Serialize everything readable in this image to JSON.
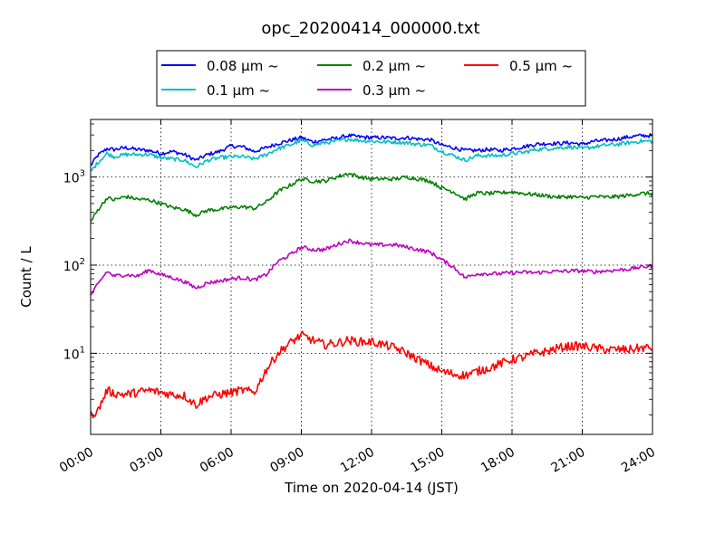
{
  "chart_data": {
    "type": "line",
    "title": "opc_20200414_000000.txt",
    "xlabel": "Time on 2020-04-14 (JST)",
    "ylabel": "Count / L",
    "x_unit": "hours",
    "xlim": [
      0,
      24
    ],
    "ylim": [
      1.2,
      4500
    ],
    "yscale": "log",
    "grid": true,
    "legend_position": "top",
    "x_ticks": [
      {
        "value": 0,
        "label": "00:00"
      },
      {
        "value": 3,
        "label": "03:00"
      },
      {
        "value": 6,
        "label": "06:00"
      },
      {
        "value": 9,
        "label": "09:00"
      },
      {
        "value": 12,
        "label": "12:00"
      },
      {
        "value": 15,
        "label": "15:00"
      },
      {
        "value": 18,
        "label": "18:00"
      },
      {
        "value": 21,
        "label": "21:00"
      },
      {
        "value": 24,
        "label": "24:00"
      }
    ],
    "y_ticks": [
      {
        "value": 10,
        "base": "10",
        "exp": "1"
      },
      {
        "value": 100,
        "base": "10",
        "exp": "2"
      },
      {
        "value": 1000,
        "base": "10",
        "exp": "3"
      }
    ],
    "series": [
      {
        "name": "0.08 μm ~",
        "color": "#0000ff",
        "x": [
          0,
          0.3,
          0.7,
          1,
          1.5,
          2,
          2.5,
          3,
          3.5,
          4,
          4.5,
          5,
          5.5,
          6,
          6.5,
          7,
          7.5,
          8,
          8.5,
          9,
          9.5,
          10,
          10.5,
          11,
          11.5,
          12,
          12.5,
          13,
          13.5,
          14,
          14.5,
          15,
          15.5,
          16,
          16.5,
          17,
          17.5,
          18,
          18.5,
          19,
          19.5,
          20,
          20.5,
          21,
          21.5,
          22,
          22.5,
          23,
          23.5,
          24
        ],
        "y": [
          1350,
          1750,
          2100,
          2050,
          2150,
          2050,
          2000,
          1850,
          1950,
          1800,
          1550,
          1800,
          1950,
          2250,
          2200,
          1950,
          2150,
          2400,
          2600,
          2800,
          2500,
          2650,
          2750,
          2950,
          2850,
          2800,
          2800,
          2750,
          2800,
          2700,
          2650,
          2300,
          2150,
          2000,
          2000,
          2050,
          2000,
          2100,
          2200,
          2350,
          2400,
          2400,
          2450,
          2350,
          2550,
          2600,
          2700,
          2850,
          2950,
          2950
        ]
      },
      {
        "name": "0.1 μm ~",
        "color": "#00bfbf",
        "x": [
          0,
          0.3,
          0.7,
          1,
          1.5,
          2,
          2.5,
          3,
          3.5,
          4,
          4.5,
          5,
          5.5,
          6,
          6.5,
          7,
          7.5,
          8,
          8.5,
          9,
          9.5,
          10,
          10.5,
          11,
          11.5,
          12,
          12.5,
          13,
          13.5,
          14,
          14.5,
          15,
          15.5,
          16,
          16.5,
          17,
          17.5,
          18,
          18.5,
          19,
          19.5,
          20,
          20.5,
          21,
          21.5,
          22,
          22.5,
          23,
          23.5,
          24
        ],
        "y": [
          1150,
          1450,
          1850,
          1700,
          1800,
          1800,
          1800,
          1650,
          1600,
          1550,
          1300,
          1550,
          1650,
          1700,
          1700,
          1600,
          1800,
          2100,
          2300,
          2600,
          2300,
          2450,
          2550,
          2700,
          2600,
          2550,
          2500,
          2500,
          2450,
          2350,
          2300,
          1950,
          1750,
          1550,
          1750,
          1750,
          1750,
          1850,
          1900,
          2050,
          2100,
          2150,
          2200,
          2100,
          2200,
          2300,
          2350,
          2450,
          2550,
          2550
        ]
      },
      {
        "name": "0.2 μm ~",
        "color": "#008000",
        "x": [
          0,
          0.3,
          0.7,
          1,
          1.5,
          2,
          2.5,
          3,
          3.5,
          4,
          4.5,
          5,
          5.5,
          6,
          6.5,
          7,
          7.5,
          8,
          8.5,
          9,
          9.5,
          10,
          10.5,
          11,
          11.5,
          12,
          12.5,
          13,
          13.5,
          14,
          14.5,
          15,
          15.5,
          16,
          16.5,
          17,
          17.5,
          18,
          18.5,
          19,
          19.5,
          20,
          20.5,
          21,
          21.5,
          22,
          22.5,
          23,
          23.5,
          24
        ],
        "y": [
          310,
          420,
          580,
          550,
          600,
          560,
          550,
          500,
          450,
          430,
          370,
          420,
          430,
          450,
          460,
          440,
          520,
          680,
          800,
          950,
          900,
          900,
          1000,
          1100,
          1000,
          950,
          950,
          950,
          1000,
          950,
          900,
          750,
          680,
          560,
          660,
          650,
          660,
          680,
          650,
          630,
          610,
          590,
          600,
          580,
          600,
          590,
          600,
          620,
          650,
          650
        ]
      },
      {
        "name": "0.3 μm ~",
        "color": "#bf00bf",
        "x": [
          0,
          0.3,
          0.7,
          1,
          1.5,
          2,
          2.5,
          3,
          3.5,
          4,
          4.5,
          5,
          5.5,
          6,
          6.5,
          7,
          7.5,
          8,
          8.5,
          9,
          9.5,
          10,
          10.5,
          11,
          11.5,
          12,
          12.5,
          13,
          13.5,
          14,
          14.5,
          15,
          15.5,
          16,
          16.5,
          17,
          17.5,
          18,
          18.5,
          19,
          19.5,
          20,
          20.5,
          21,
          21.5,
          22,
          22.5,
          23,
          23.5,
          24
        ],
        "y": [
          45,
          60,
          85,
          75,
          78,
          75,
          88,
          78,
          72,
          65,
          55,
          63,
          66,
          70,
          72,
          68,
          78,
          110,
          130,
          160,
          150,
          150,
          170,
          190,
          180,
          170,
          170,
          170,
          160,
          150,
          140,
          115,
          95,
          72,
          80,
          80,
          80,
          82,
          83,
          82,
          84,
          85,
          86,
          86,
          84,
          86,
          88,
          90,
          95,
          98
        ]
      },
      {
        "name": "0.5 μm ~",
        "color": "#ff0000",
        "x": [
          0,
          0.3,
          0.7,
          1,
          1.5,
          2,
          2.5,
          3,
          3.5,
          4,
          4.5,
          5,
          5.5,
          6,
          6.5,
          7,
          7.5,
          8,
          8.5,
          9,
          9.5,
          10,
          10.5,
          11,
          11.5,
          12,
          12.5,
          13,
          13.5,
          14,
          14.5,
          15,
          15.5,
          16,
          16.5,
          17,
          17.5,
          18,
          18.5,
          19,
          19.5,
          20,
          20.5,
          21,
          21.5,
          22,
          22.5,
          23,
          23.5,
          24
        ],
        "y": [
          2,
          2.2,
          3.8,
          3.5,
          3.4,
          3.6,
          3.8,
          3.6,
          3.4,
          3.3,
          2.6,
          3.2,
          3.4,
          3.6,
          3.8,
          3.6,
          6.5,
          10,
          13,
          16,
          14,
          12.5,
          13,
          14,
          13.5,
          13.5,
          12.5,
          11.5,
          10,
          8.5,
          7.2,
          6.2,
          5.8,
          5.6,
          6.2,
          6.8,
          7.6,
          8.5,
          9,
          10,
          10.5,
          11.5,
          12,
          12,
          11.5,
          11,
          11,
          11,
          11.5,
          11.5
        ]
      }
    ]
  }
}
